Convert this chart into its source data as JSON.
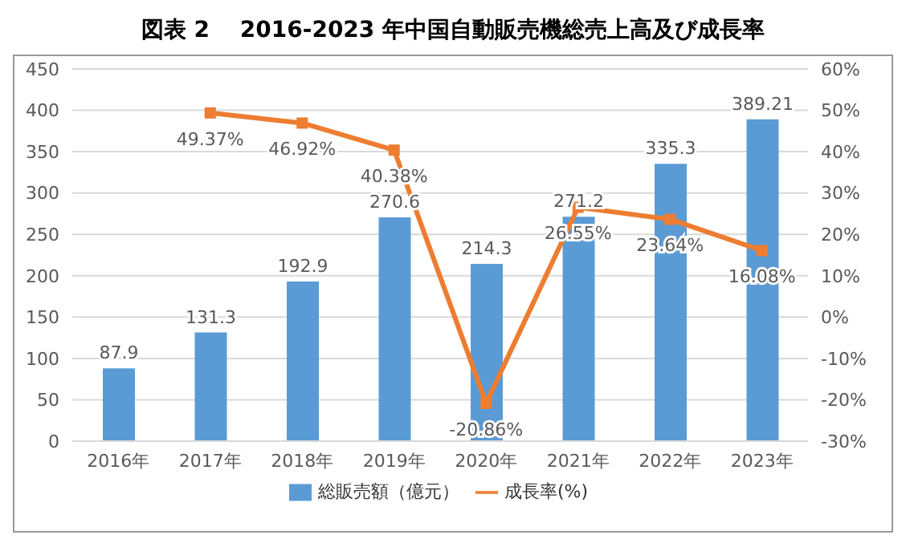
{
  "chart_data": {
    "type": "bar",
    "title": "図表 2　 2016-2023 年中国自動販売機総売上高及び成長率",
    "categories": [
      "2016年",
      "2017年",
      "2018年",
      "2019年",
      "2020年",
      "2021年",
      "2022年",
      "2023年"
    ],
    "series": [
      {
        "name": "総販売額（億元）",
        "color": "#5b9bd5",
        "values": [
          87.9,
          131.3,
          192.9,
          270.6,
          214.3,
          271.2,
          335.3,
          389.21
        ],
        "value_labels": [
          "87.9",
          "131.3",
          "192.9",
          "270.6",
          "214.3",
          "271.2",
          "335.3",
          "389.21"
        ]
      },
      {
        "name": "成長率(%)",
        "type": "line",
        "axis": "y2",
        "color": "#ed7d31",
        "values": [
          null,
          49.37,
          46.92,
          40.38,
          -20.86,
          26.55,
          23.64,
          16.08
        ],
        "value_labels": [
          null,
          "49.37%",
          "46.92%",
          "40.38%",
          "-20.86%",
          "26.55%",
          "23.64%",
          "16.08%"
        ]
      }
    ],
    "ylim": [
      0,
      450
    ],
    "yticks": [
      0,
      50,
      100,
      150,
      200,
      250,
      300,
      350,
      400,
      450
    ],
    "y2lim": [
      -30,
      60
    ],
    "y2ticks": [
      {
        "value": -30,
        "label": "-30%"
      },
      {
        "value": -20,
        "label": "-20%"
      },
      {
        "value": -10,
        "label": "-10%"
      },
      {
        "value": 0,
        "label": "0%"
      },
      {
        "value": 10,
        "label": "10%"
      },
      {
        "value": 20,
        "label": "20%"
      },
      {
        "value": 30,
        "label": "30%"
      },
      {
        "value": 40,
        "label": "40%"
      },
      {
        "value": 50,
        "label": "50%"
      },
      {
        "value": 60,
        "label": "60%"
      }
    ],
    "grid": "y",
    "legend": "bottom",
    "marker": "square"
  }
}
